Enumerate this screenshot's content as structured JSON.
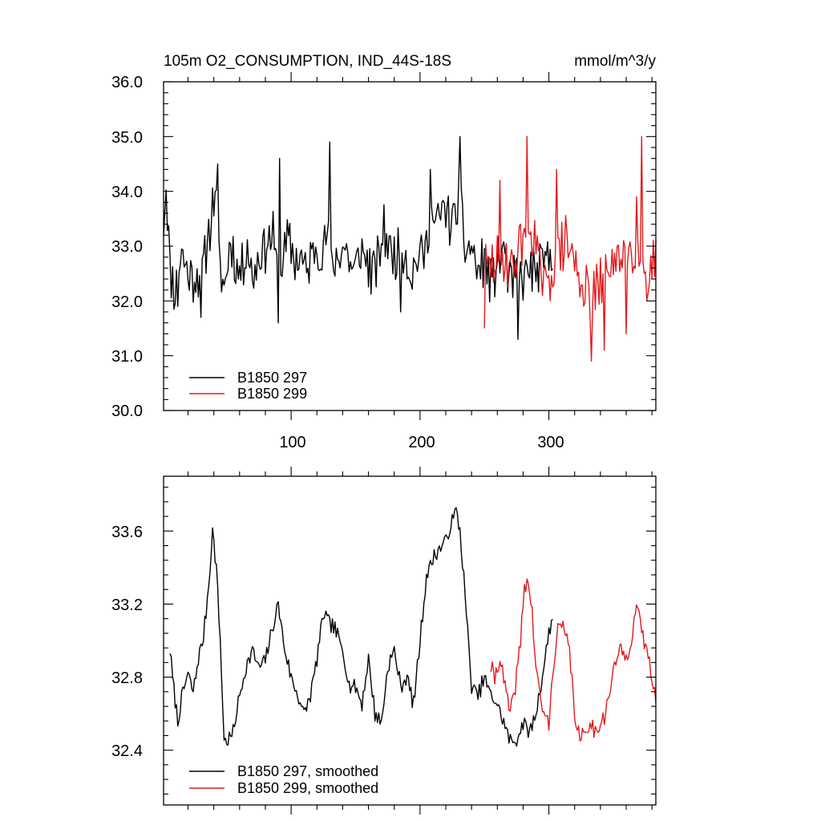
{
  "colors": {
    "series_a": "#000000",
    "series_b": "#e31a1c",
    "axis": "#000000"
  },
  "chart_data": [
    {
      "type": "line",
      "title": "105m O2_CONSUMPTION, IND_44S-18S",
      "units": "mmol/m^3/y",
      "xlim": [
        1,
        383
      ],
      "ylim": [
        30.0,
        36.0
      ],
      "y_major_ticks": [
        30.0,
        31.0,
        32.0,
        33.0,
        34.0,
        35.0,
        36.0
      ],
      "y_tick_labels": [
        "30.0",
        "31.0",
        "32.0",
        "33.0",
        "34.0",
        "35.0",
        "36.0"
      ],
      "x_major_ticks": [
        100,
        200,
        300
      ],
      "x_tick_labels": [
        "100",
        "200",
        "300"
      ],
      "legend_position": "bottom-left",
      "series": [
        {
          "name": "B1850 297",
          "color": "#000000",
          "x_start": 1,
          "x_end": 303,
          "anchors_x": [
            1,
            3,
            6,
            10,
            15,
            20,
            25,
            30,
            35,
            38,
            41,
            44,
            48,
            53,
            58,
            62,
            66,
            70,
            75,
            80,
            86,
            90,
            94,
            98,
            103,
            108,
            112,
            118,
            124,
            128,
            131,
            136,
            142,
            148,
            153,
            158,
            162,
            167,
            172,
            177,
            182,
            188,
            193,
            198,
            204,
            208,
            212,
            216,
            220,
            224,
            228,
            231,
            235,
            240,
            245,
            250,
            255,
            260,
            265,
            270,
            275,
            280,
            285,
            290,
            295,
            300,
            303
          ],
          "anchors_y": [
            33.4,
            34.1,
            32.6,
            32.1,
            32.9,
            32.5,
            32.4,
            32.5,
            33.1,
            33.5,
            34.1,
            32.8,
            32.2,
            33.1,
            32.5,
            32.6,
            33.0,
            32.4,
            32.8,
            33.0,
            33.2,
            32.4,
            32.8,
            33.2,
            32.7,
            32.8,
            32.5,
            33.0,
            32.8,
            33.3,
            32.6,
            32.8,
            33.0,
            32.5,
            32.9,
            32.8,
            32.5,
            32.7,
            33.3,
            32.9,
            32.8,
            32.9,
            32.4,
            32.8,
            32.9,
            33.5,
            33.4,
            33.6,
            33.7,
            33.4,
            33.6,
            34.1,
            32.9,
            33.0,
            32.5,
            32.8,
            32.3,
            32.7,
            33.0,
            32.3,
            32.5,
            32.4,
            32.6,
            32.5,
            32.7,
            32.8,
            32.9
          ],
          "noise": 0.75,
          "seed": 11,
          "extremes": [
            [
              12,
              31.9
            ],
            [
              30,
              31.7
            ],
            [
              43,
              34.5
            ],
            [
              90,
              31.6
            ],
            [
              91,
              34.6
            ],
            [
              130,
              34.9
            ],
            [
              185,
              31.8
            ],
            [
              208,
              34.4
            ],
            [
              231,
              35.0
            ],
            [
              276,
              31.3
            ]
          ]
        },
        {
          "name": "B1850 299",
          "color": "#e31a1c",
          "x_start": 250,
          "x_end": 383,
          "anchors_x": [
            250,
            258,
            265,
            272,
            278,
            283,
            288,
            293,
            298,
            305,
            312,
            318,
            322,
            328,
            334,
            340,
            346,
            352,
            358,
            362,
            366,
            370,
            374,
            378,
            383
          ],
          "anchors_y": [
            32.6,
            32.7,
            32.8,
            32.6,
            33.1,
            33.4,
            33.2,
            32.6,
            32.2,
            32.7,
            33.1,
            32.9,
            32.5,
            32.2,
            32.1,
            32.3,
            32.7,
            32.6,
            33.0,
            32.9,
            32.9,
            33.0,
            32.6,
            32.5,
            32.8
          ],
          "noise": 0.8,
          "seed": 29,
          "extremes": [
            [
              250,
              31.5
            ],
            [
              262,
              34.2
            ],
            [
              283,
              35.0
            ],
            [
              306,
              34.4
            ],
            [
              333,
              30.9
            ],
            [
              343,
              31.1
            ],
            [
              360,
              31.4
            ],
            [
              368,
              33.9
            ],
            [
              372,
              35.0
            ],
            [
              376,
              32.0
            ]
          ]
        }
      ]
    },
    {
      "type": "line",
      "xlim": [
        1,
        383
      ],
      "ylim": [
        32.1,
        33.9
      ],
      "y_major_ticks": [
        32.4,
        32.8,
        33.2,
        33.6
      ],
      "y_tick_labels": [
        "32.4",
        "32.8",
        "33.2",
        "33.6"
      ],
      "x_major_ticks": [
        100,
        200,
        300
      ],
      "legend_position": "bottom-left",
      "series": [
        {
          "name": "B1850 297, smoothed",
          "color": "#000000",
          "x_start": 6,
          "x_end": 303,
          "anchors_x": [
            6,
            8,
            12,
            16,
            20,
            24,
            28,
            32,
            36,
            39,
            42,
            45,
            48,
            51,
            55,
            60,
            65,
            70,
            75,
            80,
            85,
            90,
            95,
            100,
            105,
            110,
            115,
            120,
            125,
            130,
            135,
            140,
            145,
            150,
            155,
            160,
            165,
            170,
            175,
            180,
            185,
            190,
            195,
            200,
            205,
            210,
            215,
            220,
            225,
            228,
            231,
            235,
            240,
            245,
            250,
            255,
            260,
            265,
            270,
            275,
            280,
            285,
            290,
            295,
            300,
            303
          ],
          "anchors_y": [
            32.95,
            32.8,
            32.55,
            32.72,
            32.82,
            32.72,
            32.9,
            33.02,
            33.3,
            33.6,
            33.4,
            33.0,
            32.45,
            32.45,
            32.5,
            32.7,
            32.85,
            32.95,
            32.85,
            32.9,
            33.05,
            33.2,
            32.95,
            32.8,
            32.7,
            32.6,
            32.7,
            32.9,
            33.15,
            33.1,
            33.05,
            32.95,
            32.75,
            32.75,
            32.65,
            32.9,
            32.6,
            32.55,
            32.85,
            32.95,
            32.75,
            32.8,
            32.65,
            33.0,
            33.35,
            33.45,
            33.5,
            33.55,
            33.65,
            33.72,
            33.6,
            33.25,
            32.75,
            32.7,
            32.8,
            32.7,
            32.65,
            32.55,
            32.45,
            32.45,
            32.55,
            32.5,
            32.6,
            32.8,
            33.05,
            33.12
          ],
          "noise": 0.07,
          "seed": 7
        },
        {
          "name": "B1850 299, smoothed",
          "color": "#e31a1c",
          "x_start": 255,
          "x_end": 383,
          "anchors_x": [
            255,
            258,
            262,
            266,
            270,
            274,
            278,
            281,
            284,
            287,
            290,
            293,
            296,
            300,
            304,
            308,
            312,
            316,
            320,
            324,
            328,
            332,
            336,
            340,
            344,
            348,
            352,
            356,
            360,
            364,
            368,
            372,
            376,
            380,
            383
          ],
          "anchors_y": [
            32.85,
            32.8,
            32.9,
            32.75,
            32.6,
            32.75,
            33.0,
            33.3,
            33.32,
            33.15,
            32.85,
            32.7,
            32.6,
            32.55,
            32.9,
            33.1,
            33.05,
            32.95,
            32.6,
            32.45,
            32.5,
            32.55,
            32.5,
            32.55,
            32.6,
            32.75,
            32.9,
            32.95,
            32.9,
            33.0,
            33.2,
            33.05,
            32.95,
            32.8,
            32.7
          ],
          "noise": 0.08,
          "seed": 41
        }
      ]
    }
  ]
}
